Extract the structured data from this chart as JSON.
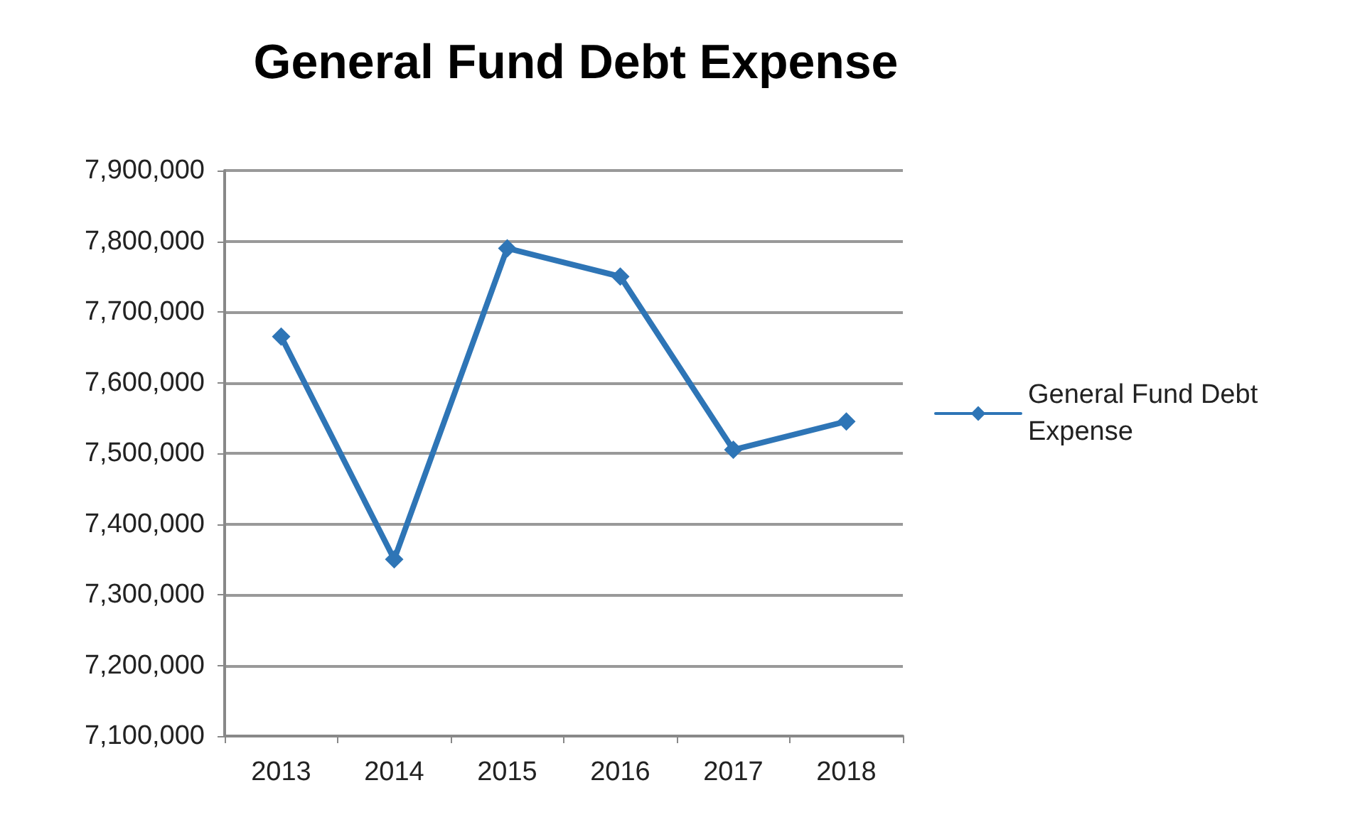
{
  "chart_data": {
    "type": "line",
    "title": "General Fund Debt Expense",
    "categories": [
      "2013",
      "2014",
      "2015",
      "2016",
      "2017",
      "2018"
    ],
    "series": [
      {
        "name": "General Fund Debt Expense",
        "color": "#2e75b6",
        "values": [
          7665000,
          7350000,
          7790000,
          7750000,
          7505000,
          7545000
        ]
      }
    ],
    "ylim": [
      7100000,
      7900000
    ],
    "yticks": [
      {
        "value": 7100000,
        "label": "7,100,000"
      },
      {
        "value": 7200000,
        "label": "7,200,000"
      },
      {
        "value": 7300000,
        "label": "7,300,000"
      },
      {
        "value": 7400000,
        "label": "7,400,000"
      },
      {
        "value": 7500000,
        "label": "7,500,000"
      },
      {
        "value": 7600000,
        "label": "7,600,000"
      },
      {
        "value": 7700000,
        "label": "7,700,000"
      },
      {
        "value": 7800000,
        "label": "7,800,000"
      },
      {
        "value": 7900000,
        "label": "7,900,000"
      }
    ],
    "grid": "y",
    "legend": "right",
    "marker": "diamond",
    "line_style": "solid"
  }
}
